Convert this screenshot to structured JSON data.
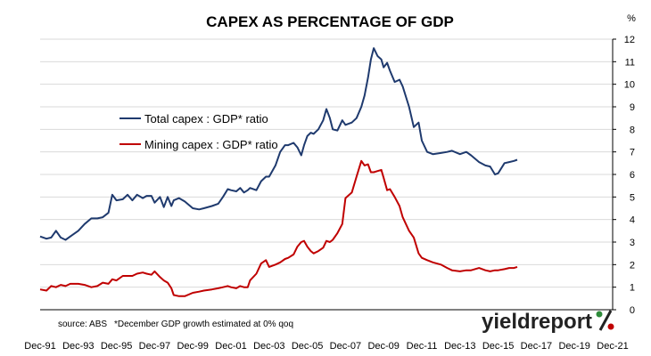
{
  "chart_data": {
    "type": "line",
    "title": "CAPEX AS PERCENTAGE OF GDP",
    "unit_label": "%",
    "ylim": [
      0,
      12
    ],
    "yticks": [
      0,
      1,
      2,
      3,
      4,
      5,
      6,
      7,
      8,
      9,
      10,
      11,
      12
    ],
    "xlim": [
      1991.92,
      2021.92
    ],
    "xticks": [
      {
        "label": "Dec-91",
        "x": 1991.92
      },
      {
        "label": "Dec-93",
        "x": 1993.92
      },
      {
        "label": "Dec-95",
        "x": 1995.92
      },
      {
        "label": "Dec-97",
        "x": 1997.92
      },
      {
        "label": "Dec-99",
        "x": 1999.92
      },
      {
        "label": "Dec-01",
        "x": 2001.92
      },
      {
        "label": "Dec-03",
        "x": 2003.92
      },
      {
        "label": "Dec-05",
        "x": 2005.92
      },
      {
        "label": "Dec-07",
        "x": 2007.92
      },
      {
        "label": "Dec-09",
        "x": 2009.92
      },
      {
        "label": "Dec-11",
        "x": 2011.92
      },
      {
        "label": "Dec-13",
        "x": 2013.92
      },
      {
        "label": "Dec-15",
        "x": 2015.92
      },
      {
        "label": "Dec-17",
        "x": 2017.92
      },
      {
        "label": "Dec-19",
        "x": 2019.92
      },
      {
        "label": "Dec-21",
        "x": 2021.92
      }
    ],
    "grid": "horizontal",
    "legend_position": "upper-left",
    "series": [
      {
        "name": "Total capex : GDP* ratio",
        "color": "#1f3a6e",
        "points": [
          [
            1991.92,
            3.25
          ],
          [
            1992.25,
            3.15
          ],
          [
            1992.5,
            3.2
          ],
          [
            1992.75,
            3.5
          ],
          [
            1993.0,
            3.2
          ],
          [
            1993.25,
            3.1
          ],
          [
            1993.5,
            3.25
          ],
          [
            1993.92,
            3.5
          ],
          [
            1994.25,
            3.8
          ],
          [
            1994.6,
            4.05
          ],
          [
            1994.92,
            4.05
          ],
          [
            1995.2,
            4.1
          ],
          [
            1995.5,
            4.3
          ],
          [
            1995.7,
            5.1
          ],
          [
            1995.92,
            4.85
          ],
          [
            1996.25,
            4.9
          ],
          [
            1996.5,
            5.1
          ],
          [
            1996.75,
            4.85
          ],
          [
            1997.0,
            5.1
          ],
          [
            1997.3,
            4.95
          ],
          [
            1997.5,
            5.05
          ],
          [
            1997.75,
            5.05
          ],
          [
            1997.92,
            4.75
          ],
          [
            1998.2,
            5.0
          ],
          [
            1998.4,
            4.55
          ],
          [
            1998.6,
            5.0
          ],
          [
            1998.8,
            4.6
          ],
          [
            1998.92,
            4.85
          ],
          [
            1999.2,
            4.95
          ],
          [
            1999.5,
            4.8
          ],
          [
            1999.92,
            4.5
          ],
          [
            2000.25,
            4.45
          ],
          [
            2000.5,
            4.5
          ],
          [
            2000.92,
            4.6
          ],
          [
            2001.25,
            4.7
          ],
          [
            2001.5,
            5.0
          ],
          [
            2001.75,
            5.35
          ],
          [
            2001.92,
            5.3
          ],
          [
            2002.2,
            5.25
          ],
          [
            2002.4,
            5.4
          ],
          [
            2002.6,
            5.2
          ],
          [
            2002.8,
            5.3
          ],
          [
            2002.92,
            5.4
          ],
          [
            2003.25,
            5.3
          ],
          [
            2003.5,
            5.7
          ],
          [
            2003.75,
            5.9
          ],
          [
            2003.92,
            5.9
          ],
          [
            2004.25,
            6.4
          ],
          [
            2004.5,
            7.0
          ],
          [
            2004.75,
            7.3
          ],
          [
            2004.92,
            7.3
          ],
          [
            2005.2,
            7.4
          ],
          [
            2005.4,
            7.2
          ],
          [
            2005.6,
            6.85
          ],
          [
            2005.75,
            7.3
          ],
          [
            2005.92,
            7.7
          ],
          [
            2006.1,
            7.85
          ],
          [
            2006.25,
            7.8
          ],
          [
            2006.5,
            8.0
          ],
          [
            2006.75,
            8.4
          ],
          [
            2006.92,
            8.9
          ],
          [
            2007.1,
            8.5
          ],
          [
            2007.25,
            8.0
          ],
          [
            2007.5,
            7.95
          ],
          [
            2007.75,
            8.4
          ],
          [
            2007.92,
            8.2
          ],
          [
            2008.25,
            8.3
          ],
          [
            2008.5,
            8.5
          ],
          [
            2008.75,
            9.0
          ],
          [
            2008.92,
            9.5
          ],
          [
            2009.1,
            10.3
          ],
          [
            2009.25,
            11.1
          ],
          [
            2009.4,
            11.6
          ],
          [
            2009.6,
            11.25
          ],
          [
            2009.8,
            11.1
          ],
          [
            2009.92,
            10.75
          ],
          [
            2010.1,
            10.95
          ],
          [
            2010.25,
            10.6
          ],
          [
            2010.5,
            10.1
          ],
          [
            2010.75,
            10.2
          ],
          [
            2010.92,
            9.9
          ],
          [
            2011.25,
            9.0
          ],
          [
            2011.5,
            8.1
          ],
          [
            2011.75,
            8.3
          ],
          [
            2011.92,
            7.5
          ],
          [
            2012.2,
            7.0
          ],
          [
            2012.5,
            6.9
          ],
          [
            2012.92,
            6.95
          ],
          [
            2013.25,
            7.0
          ],
          [
            2013.5,
            7.05
          ],
          [
            2013.92,
            6.9
          ],
          [
            2014.25,
            7.0
          ],
          [
            2014.5,
            6.85
          ],
          [
            2014.92,
            6.55
          ],
          [
            2015.25,
            6.4
          ],
          [
            2015.5,
            6.35
          ],
          [
            2015.75,
            6.0
          ],
          [
            2015.92,
            6.05
          ],
          [
            2016.25,
            6.5
          ],
          [
            2016.5,
            6.55
          ],
          [
            2016.75,
            6.6
          ],
          [
            2016.92,
            6.65
          ]
        ]
      },
      {
        "name": "Mining capex : GDP* ratio",
        "color": "#c00000",
        "points": [
          [
            1991.92,
            0.9
          ],
          [
            1992.25,
            0.85
          ],
          [
            1992.5,
            1.05
          ],
          [
            1992.75,
            1.0
          ],
          [
            1993.0,
            1.1
          ],
          [
            1993.25,
            1.05
          ],
          [
            1993.5,
            1.15
          ],
          [
            1993.92,
            1.15
          ],
          [
            1994.25,
            1.1
          ],
          [
            1994.6,
            1.0
          ],
          [
            1994.92,
            1.05
          ],
          [
            1995.2,
            1.2
          ],
          [
            1995.5,
            1.15
          ],
          [
            1995.7,
            1.35
          ],
          [
            1995.92,
            1.3
          ],
          [
            1996.25,
            1.5
          ],
          [
            1996.5,
            1.5
          ],
          [
            1996.75,
            1.5
          ],
          [
            1997.0,
            1.6
          ],
          [
            1997.3,
            1.65
          ],
          [
            1997.5,
            1.6
          ],
          [
            1997.75,
            1.55
          ],
          [
            1997.92,
            1.7
          ],
          [
            1998.2,
            1.45
          ],
          [
            1998.4,
            1.3
          ],
          [
            1998.6,
            1.2
          ],
          [
            1998.8,
            0.95
          ],
          [
            1998.92,
            0.65
          ],
          [
            1999.2,
            0.6
          ],
          [
            1999.5,
            0.6
          ],
          [
            1999.92,
            0.75
          ],
          [
            2000.25,
            0.8
          ],
          [
            2000.5,
            0.85
          ],
          [
            2000.92,
            0.9
          ],
          [
            2001.25,
            0.95
          ],
          [
            2001.5,
            1.0
          ],
          [
            2001.75,
            1.05
          ],
          [
            2001.92,
            1.0
          ],
          [
            2002.2,
            0.95
          ],
          [
            2002.4,
            1.05
          ],
          [
            2002.6,
            1.0
          ],
          [
            2002.8,
            1.0
          ],
          [
            2002.92,
            1.3
          ],
          [
            2003.25,
            1.6
          ],
          [
            2003.5,
            2.05
          ],
          [
            2003.75,
            2.2
          ],
          [
            2003.92,
            1.9
          ],
          [
            2004.25,
            2.0
          ],
          [
            2004.5,
            2.1
          ],
          [
            2004.75,
            2.25
          ],
          [
            2004.92,
            2.3
          ],
          [
            2005.2,
            2.45
          ],
          [
            2005.4,
            2.8
          ],
          [
            2005.6,
            3.0
          ],
          [
            2005.75,
            3.05
          ],
          [
            2005.92,
            2.8
          ],
          [
            2006.1,
            2.6
          ],
          [
            2006.25,
            2.5
          ],
          [
            2006.5,
            2.6
          ],
          [
            2006.75,
            2.75
          ],
          [
            2006.92,
            3.05
          ],
          [
            2007.1,
            3.0
          ],
          [
            2007.25,
            3.1
          ],
          [
            2007.5,
            3.4
          ],
          [
            2007.75,
            3.8
          ],
          [
            2007.92,
            4.95
          ],
          [
            2008.25,
            5.2
          ],
          [
            2008.5,
            5.9
          ],
          [
            2008.75,
            6.6
          ],
          [
            2008.92,
            6.4
          ],
          [
            2009.1,
            6.45
          ],
          [
            2009.25,
            6.1
          ],
          [
            2009.4,
            6.1
          ],
          [
            2009.6,
            6.15
          ],
          [
            2009.8,
            6.2
          ],
          [
            2009.92,
            5.85
          ],
          [
            2010.1,
            5.3
          ],
          [
            2010.25,
            5.35
          ],
          [
            2010.5,
            5.0
          ],
          [
            2010.75,
            4.6
          ],
          [
            2010.92,
            4.1
          ],
          [
            2011.25,
            3.5
          ],
          [
            2011.5,
            3.2
          ],
          [
            2011.75,
            2.5
          ],
          [
            2011.92,
            2.3
          ],
          [
            2012.2,
            2.2
          ],
          [
            2012.5,
            2.1
          ],
          [
            2012.92,
            2.0
          ],
          [
            2013.25,
            1.85
          ],
          [
            2013.5,
            1.75
          ],
          [
            2013.92,
            1.7
          ],
          [
            2014.25,
            1.75
          ],
          [
            2014.5,
            1.75
          ],
          [
            2014.92,
            1.85
          ],
          [
            2015.25,
            1.75
          ],
          [
            2015.5,
            1.7
          ],
          [
            2015.75,
            1.75
          ],
          [
            2015.92,
            1.75
          ],
          [
            2016.25,
            1.8
          ],
          [
            2016.5,
            1.85
          ],
          [
            2016.75,
            1.85
          ],
          [
            2016.92,
            1.9
          ]
        ]
      }
    ],
    "notes": {
      "source": "source: ABS",
      "footnote": "*December GDP growth estimated at 0% qoq"
    }
  },
  "logo": {
    "text": "yieldreport",
    "symbol": "%"
  }
}
